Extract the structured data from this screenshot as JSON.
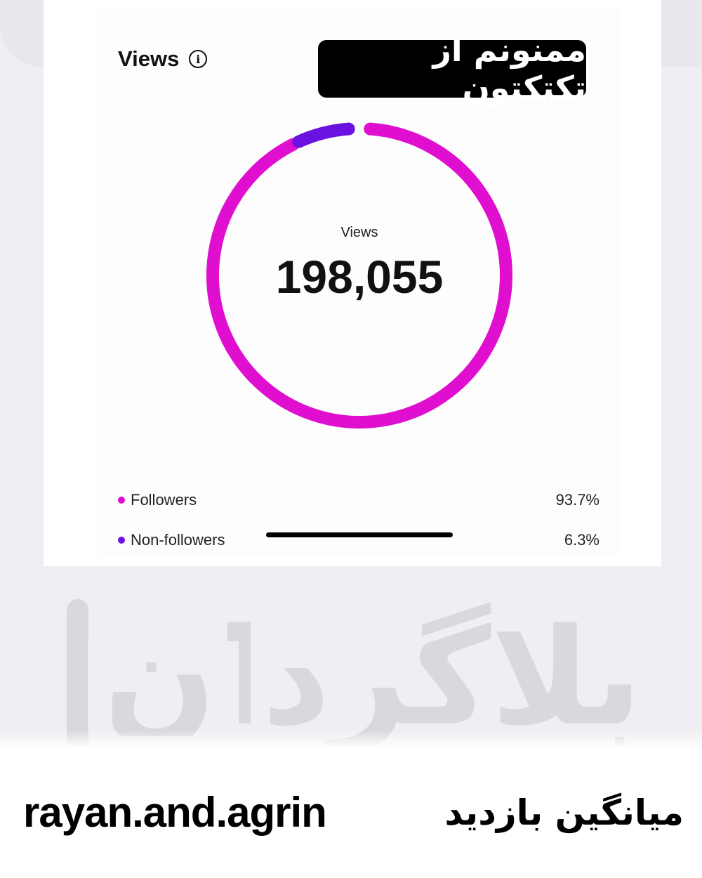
{
  "header": {
    "title": "Views",
    "info_icon": "info-icon"
  },
  "banner": {
    "text": "ممنونم از تکتکتون"
  },
  "chart_data": {
    "type": "pie",
    "style": "donut",
    "center_label": "Views",
    "center_value": "198,055",
    "categories": [
      "Followers",
      "Non-followers"
    ],
    "values": [
      93.7,
      6.3
    ],
    "labels": [
      "93.7%",
      "6.3%"
    ],
    "colors": [
      "#e00fd0",
      "#6a12e0"
    ],
    "legend_placement": "bottom"
  },
  "watermark": {
    "text": "بلاگردان"
  },
  "footer": {
    "username": "rayan.and.agrin",
    "caption": "میانگین بازدید"
  }
}
